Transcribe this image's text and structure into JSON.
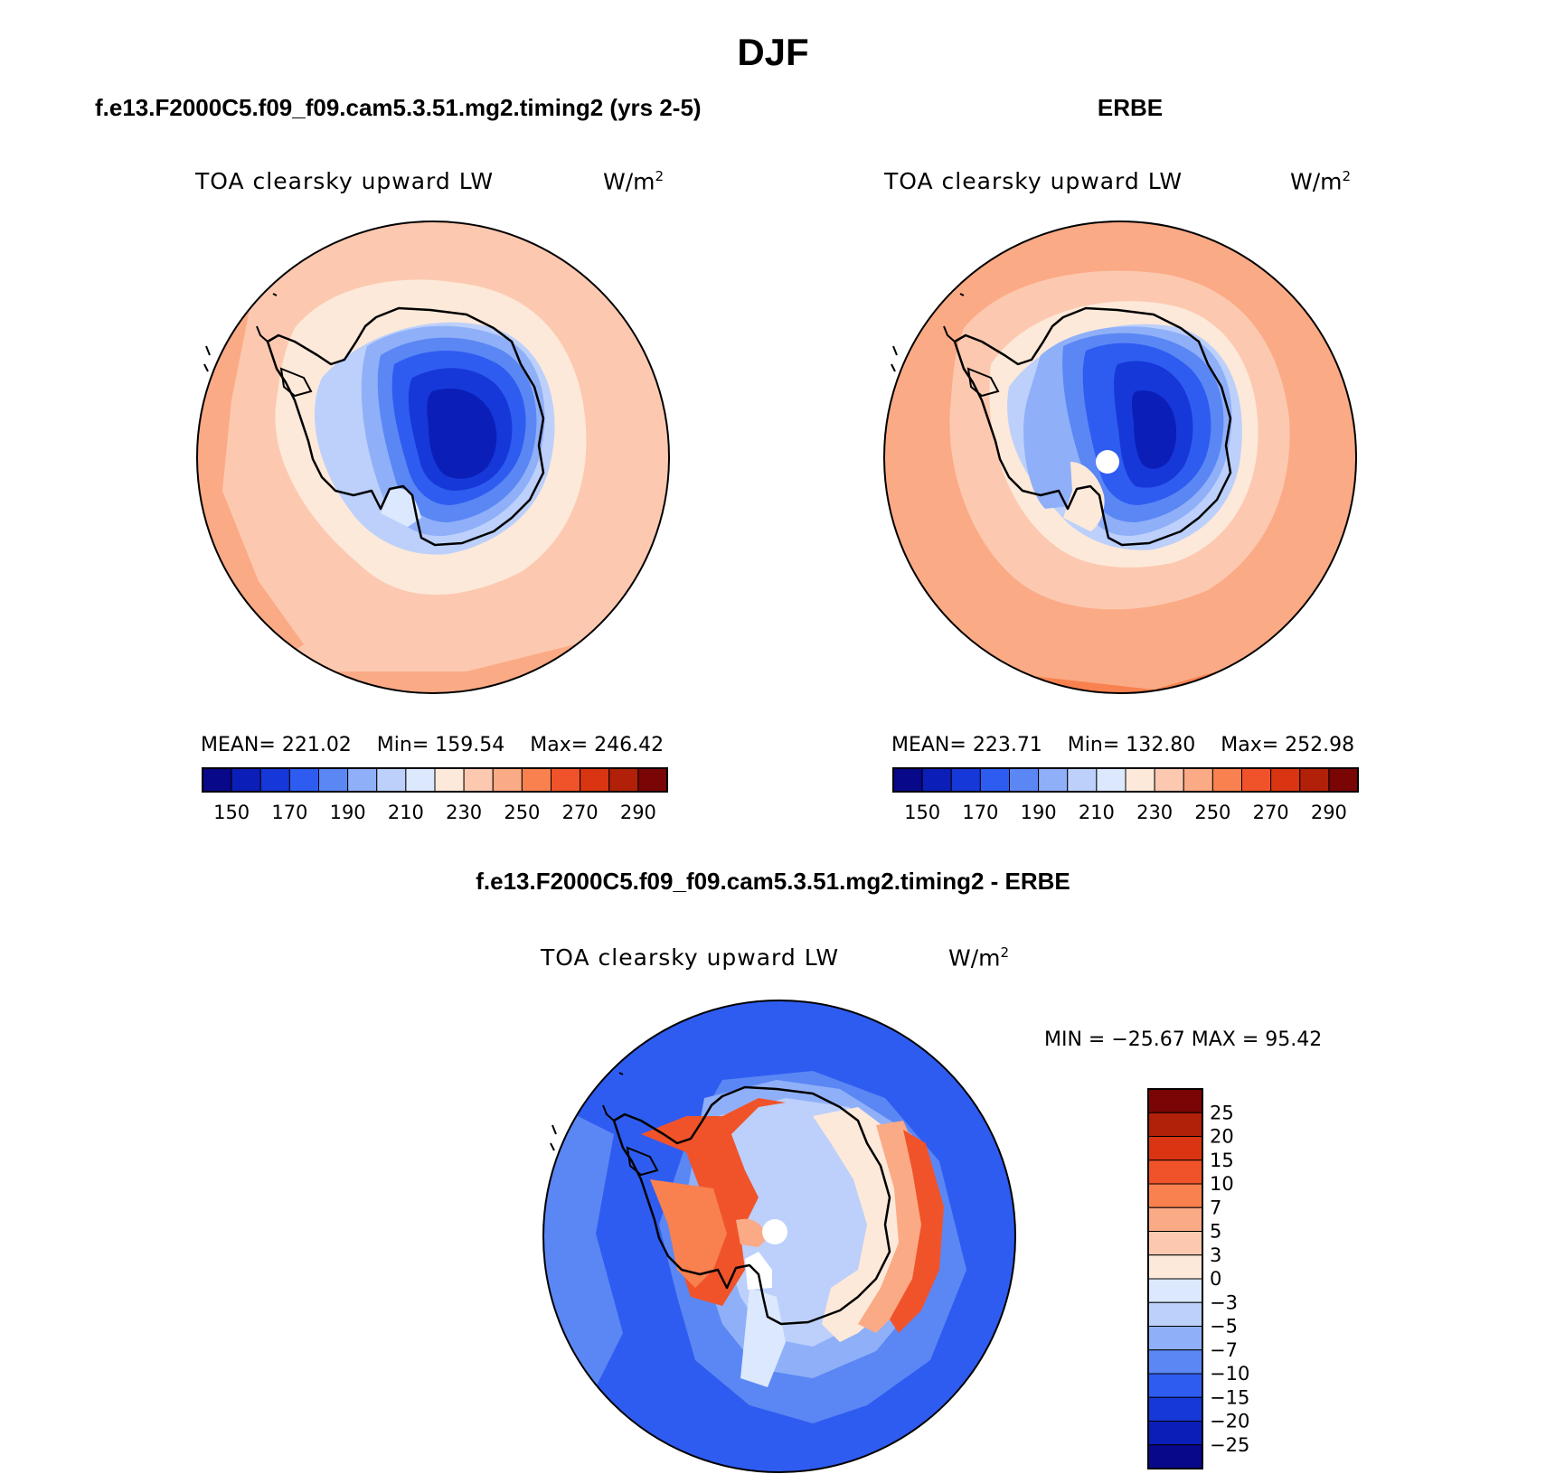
{
  "figure": {
    "title": "DJF"
  },
  "panels": [
    {
      "case": "f.e13.F2000C5.f09_f09.cam5.3.51.mg2.timing2 (yrs 2-5)",
      "variable": "TOA clearsky upward LW",
      "units": "W/m",
      "units_exp": "2",
      "stats": {
        "mean_label": "MEAN=",
        "mean": "221.02",
        "min_label": "Min=",
        "min": "159.54",
        "max_label": "Max=",
        "max": "246.42"
      }
    },
    {
      "case": "ERBE",
      "variable": "TOA clearsky upward LW",
      "units": "W/m",
      "units_exp": "2",
      "stats": {
        "mean_label": "MEAN=",
        "mean": "223.71",
        "min_label": "Min=",
        "min": "132.80",
        "max_label": "Max=",
        "max": "252.98"
      }
    },
    {
      "case": "f.e13.F2000C5.f09_f09.cam5.3.51.mg2.timing2 - ERBE",
      "variable": "TOA clearsky upward LW",
      "units": "W/m",
      "units_exp": "2",
      "stats_text": "MIN = −25.67 MAX =  95.42"
    }
  ],
  "colorbar_abs": {
    "labels": [
      "150",
      "170",
      "190",
      "210",
      "230",
      "250",
      "270",
      "290"
    ],
    "colors": [
      "#08088a",
      "#0b1fb8",
      "#1638d8",
      "#2f5cf0",
      "#5b87f4",
      "#8fb0f8",
      "#bcd0fb",
      "#dbe8fd",
      "#fde9d9",
      "#fcc9b0",
      "#fbaa86",
      "#f8814f",
      "#f0532a",
      "#da3512",
      "#b12009",
      "#7a0505"
    ]
  },
  "colorbar_diff": {
    "labels": [
      "25",
      "20",
      "15",
      "10",
      "7",
      "5",
      "3",
      "0",
      "−3",
      "−5",
      "−7",
      "−10",
      "−15",
      "−20",
      "−25"
    ],
    "colors": [
      "#7a0505",
      "#b12009",
      "#da3512",
      "#f0532a",
      "#f8814f",
      "#fbaa86",
      "#fcc9b0",
      "#fde9d9",
      "#dbe8fd",
      "#bcd0fb",
      "#8fb0f8",
      "#5b87f4",
      "#2f5cf0",
      "#1638d8",
      "#0b1fb8",
      "#08088a"
    ]
  }
}
